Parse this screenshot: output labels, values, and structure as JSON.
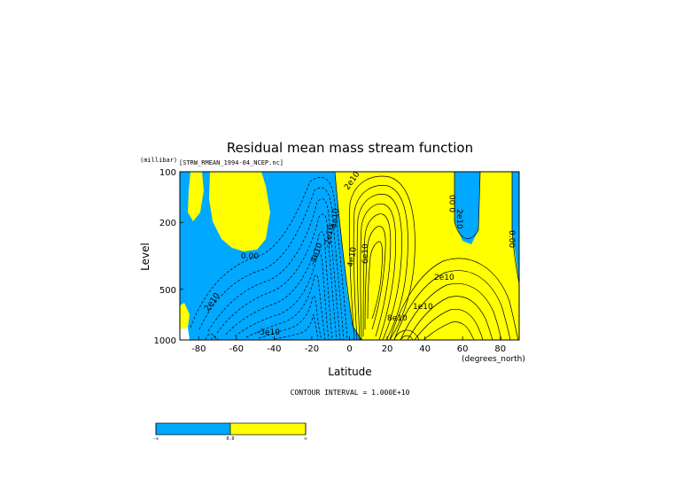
{
  "chart_data": {
    "type": "contour",
    "title": "Residual mean mass stream function",
    "file_label": "[STRW_RMEAN_1994-04_NCEP.nc]",
    "ylabel": "Level",
    "yunit": "(millibar)",
    "xlabel": "Latitude",
    "xunit": "(degrees_north)",
    "xlim": [
      -90,
      90
    ],
    "ylim": [
      100,
      1000
    ],
    "y_scale": "log",
    "xticks": [
      -80,
      -60,
      -40,
      -20,
      0,
      20,
      40,
      60,
      80
    ],
    "yticks": [
      100,
      200,
      500,
      1000
    ],
    "contour_interval_text": "CONTOUR INTERVAL = 1.000E+10",
    "contour_labels": [
      "2e10",
      "0.00",
      "2e10",
      "4e10",
      "6e10",
      "8e10",
      "1e10",
      "2e10",
      "4e10",
      "2e10",
      "0.00",
      "0.00",
      "-4e10",
      "-2e10",
      "-3e10"
    ],
    "fill_colors": {
      "negative": "#00a8ff",
      "positive": "#ffff00"
    },
    "colorbar": {
      "labels": [
        "-∞",
        "0.0",
        "∞"
      ],
      "colors": [
        "#00a8ff",
        "#ffff00"
      ]
    }
  }
}
